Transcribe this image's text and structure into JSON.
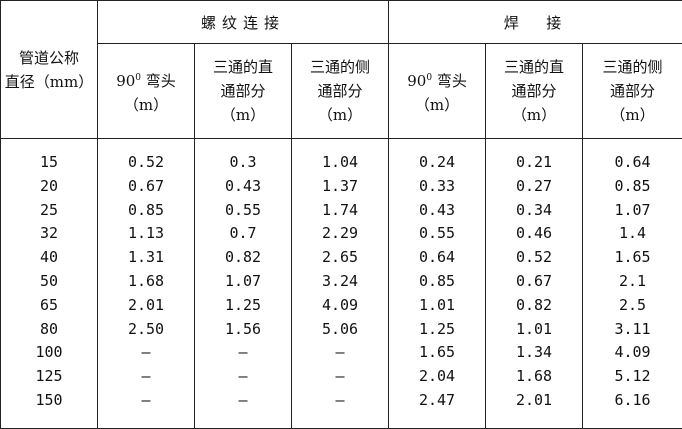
{
  "header": {
    "row_label_line1": "管道公称",
    "row_label_line2": "直径（mm）",
    "group_threaded": "螺纹连接",
    "group_welded": "焊  接",
    "elbow_main": "90",
    "elbow_sup": "0",
    "elbow_rest": " 弯头",
    "elbow_unit": "（m）",
    "tee_straight_line1": "三通的直",
    "tee_straight_line2": "通部分",
    "tee_side_line1": "三通的侧",
    "tee_side_line2": "通部分",
    "unit": "（m）"
  },
  "diameters": [
    "15",
    "20",
    "25",
    "32",
    "40",
    "50",
    "65",
    "80",
    "100",
    "125",
    "150"
  ],
  "threaded": {
    "elbow": [
      "0.52",
      "0.67",
      "0.85",
      "1.13",
      "1.31",
      "1.68",
      "2.01",
      "2.50",
      "—",
      "—",
      "—"
    ],
    "tee_straight": [
      "0.3",
      "0.43",
      "0.55",
      "0.7",
      "0.82",
      "1.07",
      "1.25",
      "1.56",
      "—",
      "—",
      "—"
    ],
    "tee_side": [
      "1.04",
      "1.37",
      "1.74",
      "2.29",
      "2.65",
      "3.24",
      "4.09",
      "5.06",
      "—",
      "—",
      "—"
    ]
  },
  "welded": {
    "elbow": [
      "0.24",
      "0.33",
      "0.43",
      "0.55",
      "0.64",
      "0.85",
      "1.01",
      "1.25",
      "1.65",
      "2.04",
      "2.47"
    ],
    "tee_straight": [
      "0.21",
      "0.27",
      "0.34",
      "0.46",
      "0.52",
      "0.67",
      "0.82",
      "1.01",
      "1.34",
      "1.68",
      "2.01"
    ],
    "tee_side": [
      "0.64",
      "0.85",
      "1.07",
      "1.4",
      "1.65",
      "2.1",
      "2.5",
      "3.11",
      "4.09",
      "5.12",
      "6.16"
    ]
  }
}
